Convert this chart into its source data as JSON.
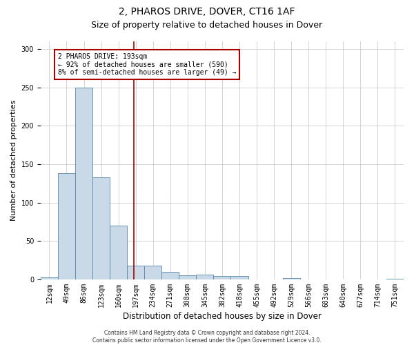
{
  "title": "2, PHAROS DRIVE, DOVER, CT16 1AF",
  "subtitle": "Size of property relative to detached houses in Dover",
  "xlabel": "Distribution of detached houses by size in Dover",
  "ylabel": "Number of detached properties",
  "bin_labels": [
    "12sqm",
    "49sqm",
    "86sqm",
    "123sqm",
    "160sqm",
    "197sqm",
    "234sqm",
    "271sqm",
    "308sqm",
    "345sqm",
    "382sqm",
    "418sqm",
    "455sqm",
    "492sqm",
    "529sqm",
    "566sqm",
    "603sqm",
    "640sqm",
    "677sqm",
    "714sqm",
    "751sqm"
  ],
  "bar_values": [
    3,
    138,
    250,
    133,
    70,
    18,
    18,
    10,
    5,
    6,
    4,
    4,
    0,
    0,
    2,
    0,
    0,
    0,
    0,
    0,
    1
  ],
  "bar_color": "#c9d9e8",
  "bar_edge_color": "#5588aa",
  "vline_color": "#aa0000",
  "annotation_text": "2 PHAROS DRIVE: 193sqm\n← 92% of detached houses are smaller (590)\n8% of semi-detached houses are larger (49) →",
  "annotation_box_color": "#ffffff",
  "annotation_box_edge": "#aa0000",
  "footer": "Contains HM Land Registry data © Crown copyright and database right 2024.\nContains public sector information licensed under the Open Government Licence v3.0.",
  "ylim": [
    0,
    310
  ],
  "yticks": [
    0,
    50,
    100,
    150,
    200,
    250,
    300
  ],
  "bg_color": "#ffffff",
  "grid_color": "#cccccc",
  "title_fontsize": 10,
  "subtitle_fontsize": 9,
  "xlabel_fontsize": 8.5,
  "ylabel_fontsize": 8,
  "tick_fontsize": 7,
  "footer_fontsize": 5.5,
  "annotation_fontsize": 7
}
